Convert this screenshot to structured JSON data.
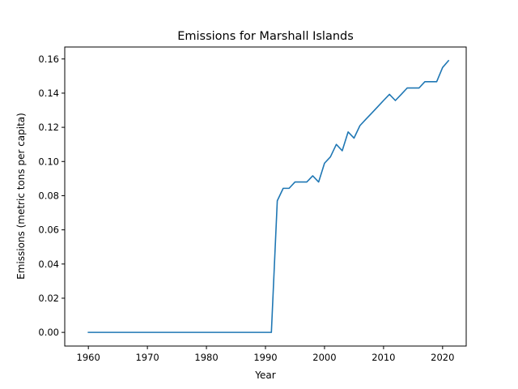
{
  "chart_data": {
    "type": "line",
    "title": "Emissions for Marshall Islands",
    "xlabel": "Year",
    "ylabel": "Emissions (metric tons per capita)",
    "xlim": [
      1956,
      2024
    ],
    "ylim": [
      -0.008,
      0.167
    ],
    "xticks": [
      1960,
      1970,
      1980,
      1990,
      2000,
      2010,
      2020
    ],
    "xtick_labels": [
      "1960",
      "1970",
      "1980",
      "1990",
      "2000",
      "2010",
      "2020"
    ],
    "yticks": [
      0.0,
      0.02,
      0.04,
      0.06,
      0.08,
      0.1,
      0.12,
      0.14,
      0.16
    ],
    "ytick_labels": [
      "0.00",
      "0.02",
      "0.04",
      "0.06",
      "0.08",
      "0.10",
      "0.12",
      "0.14",
      "0.16"
    ],
    "grid": false,
    "series": [
      {
        "color": "#1f77b4",
        "x": [
          1960,
          1961,
          1962,
          1963,
          1964,
          1965,
          1966,
          1967,
          1968,
          1969,
          1970,
          1971,
          1972,
          1973,
          1974,
          1975,
          1976,
          1977,
          1978,
          1979,
          1980,
          1981,
          1982,
          1983,
          1984,
          1985,
          1986,
          1987,
          1988,
          1989,
          1990,
          1991,
          1992,
          1993,
          1994,
          1995,
          1996,
          1997,
          1998,
          1999,
          2000,
          2001,
          2002,
          2003,
          2004,
          2005,
          2006,
          2007,
          2008,
          2009,
          2010,
          2011,
          2012,
          2013,
          2014,
          2015,
          2016,
          2017,
          2018,
          2019,
          2020,
          2021
        ],
        "y": [
          0,
          0,
          0,
          0,
          0,
          0,
          0,
          0,
          0,
          0,
          0,
          0,
          0,
          0,
          0,
          0,
          0,
          0,
          0,
          0,
          0,
          0,
          0,
          0,
          0,
          0,
          0,
          0,
          0,
          0,
          0,
          0,
          0.077,
          0.0843,
          0.0843,
          0.088,
          0.088,
          0.088,
          0.0916,
          0.088,
          0.099,
          0.1027,
          0.11,
          0.1063,
          0.1173,
          0.1137,
          0.121,
          0.1247,
          0.1283,
          0.132,
          0.1357,
          0.1393,
          0.1357,
          0.1393,
          0.143,
          0.143,
          0.143,
          0.1467,
          0.1467,
          0.1467,
          0.155,
          0.159
        ]
      }
    ]
  }
}
